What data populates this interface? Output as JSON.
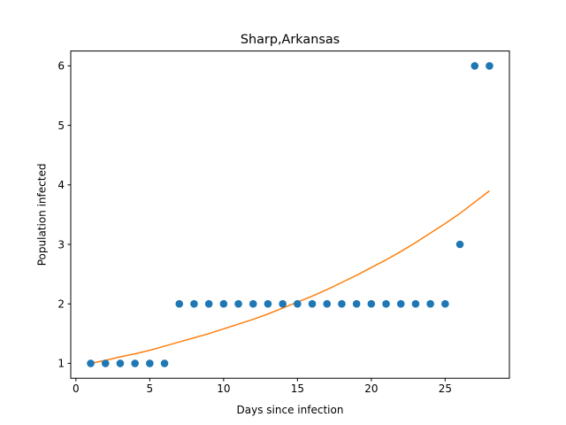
{
  "chart_data": {
    "type": "scatter",
    "title": "Sharp,Arkansas",
    "xlabel": "Days since infection",
    "ylabel": "Population infected",
    "xlim": [
      -0.35,
      29.35
    ],
    "ylim": [
      0.75,
      6.25
    ],
    "xticks": [
      0,
      5,
      10,
      15,
      20,
      25
    ],
    "yticks": [
      1,
      2,
      3,
      4,
      5,
      6
    ],
    "grid": false,
    "series": [
      {
        "kind": "scatter",
        "color": "#1f77b4",
        "x": [
          1,
          2,
          3,
          4,
          5,
          6,
          7,
          8,
          9,
          10,
          11,
          12,
          13,
          14,
          15,
          16,
          17,
          18,
          19,
          20,
          21,
          22,
          23,
          24,
          25,
          26,
          27,
          28
        ],
        "y": [
          1,
          1,
          1,
          1,
          1,
          1,
          2,
          2,
          2,
          2,
          2,
          2,
          2,
          2,
          2,
          2,
          2,
          2,
          2,
          2,
          2,
          2,
          2,
          2,
          2,
          3,
          6,
          6
        ]
      },
      {
        "kind": "line",
        "color": "#ff7f0e",
        "x": [
          1,
          2,
          3,
          4,
          5,
          6,
          7,
          8,
          9,
          10,
          11,
          12,
          13,
          14,
          15,
          16,
          17,
          18,
          19,
          20,
          21,
          22,
          23,
          24,
          25,
          26,
          27,
          28
        ],
        "y": [
          1.0,
          1.05,
          1.11,
          1.16,
          1.22,
          1.29,
          1.36,
          1.43,
          1.5,
          1.58,
          1.66,
          1.74,
          1.83,
          1.93,
          2.03,
          2.13,
          2.24,
          2.36,
          2.48,
          2.61,
          2.74,
          2.88,
          3.03,
          3.19,
          3.35,
          3.52,
          3.71,
          3.9
        ]
      }
    ]
  }
}
